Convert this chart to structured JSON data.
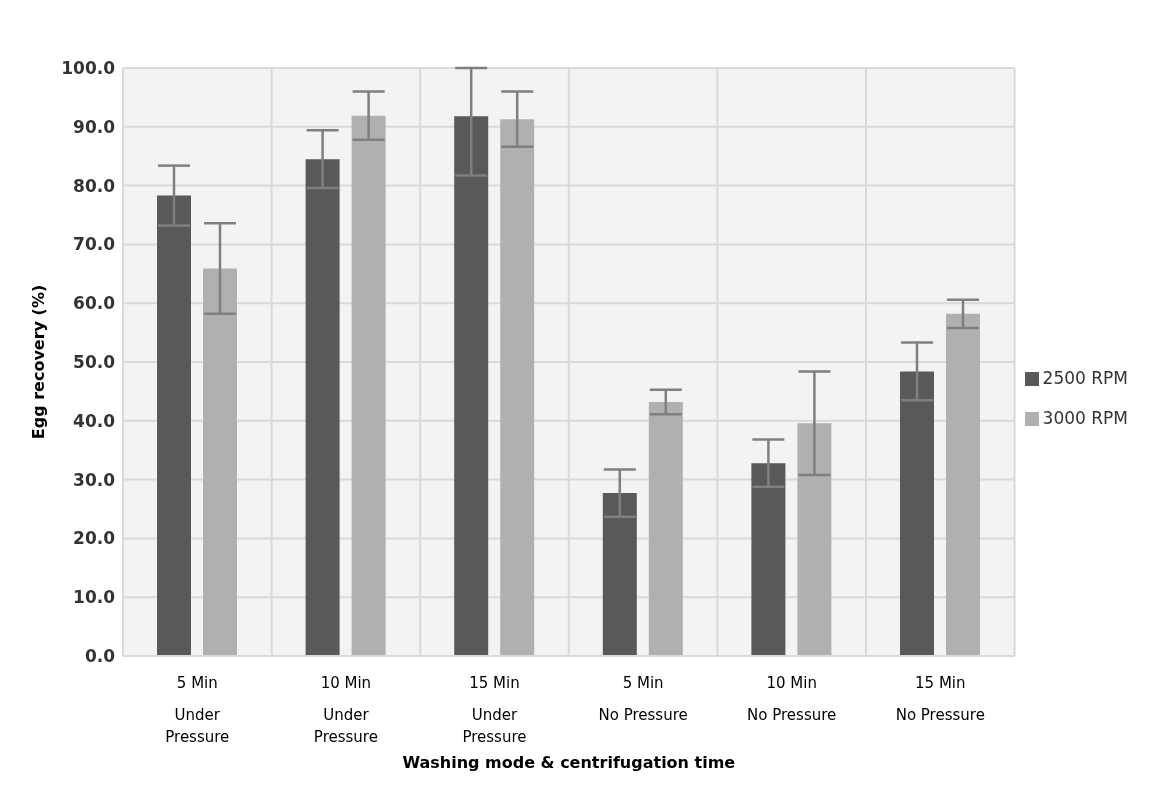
{
  "chart_data": {
    "type": "bar",
    "xlabel": "Washing mode & centrifugation time",
    "ylabel": "Egg recovery (%)",
    "categories": [
      "5 Min\nUnder Pressure",
      "10 Min\nUnder Pressure",
      "15 Min\nUnder Pressure",
      "5 Min\nNo Pressure",
      "10 Min\nNo Pressure",
      "15 Min\nNo Pressure"
    ],
    "series": [
      {
        "name": "2500 RPM",
        "color": "#595959",
        "values": [
          78.3,
          84.5,
          91.8,
          27.7,
          32.8,
          48.4
        ],
        "errors": [
          5.1,
          4.9,
          [
            81.7,
            100.0
          ],
          4.0,
          4.0,
          4.9
        ]
      },
      {
        "name": "3000 RPM",
        "color": "#b0b0b0",
        "values": [
          65.9,
          91.9,
          91.3,
          43.2,
          39.6,
          58.2
        ],
        "errors": [
          7.7,
          4.1,
          4.7,
          2.1,
          8.8,
          2.4
        ]
      }
    ],
    "ylim": [
      0,
      100
    ],
    "yticks": [
      {
        "value": 0,
        "label": "0.0"
      },
      {
        "value": 10,
        "label": "10.0"
      },
      {
        "value": 20,
        "label": "20.0"
      },
      {
        "value": 30,
        "label": "30.0"
      },
      {
        "value": 40,
        "label": "40.0"
      },
      {
        "value": 50,
        "label": "50.0"
      },
      {
        "value": 60,
        "label": "60.0"
      },
      {
        "value": 70,
        "label": "70.0"
      },
      {
        "value": 80,
        "label": "80.0"
      },
      {
        "value": 90,
        "label": "90.0"
      },
      {
        "value": 100,
        "label": "100.0"
      }
    ],
    "grid": true,
    "legend": "right"
  }
}
